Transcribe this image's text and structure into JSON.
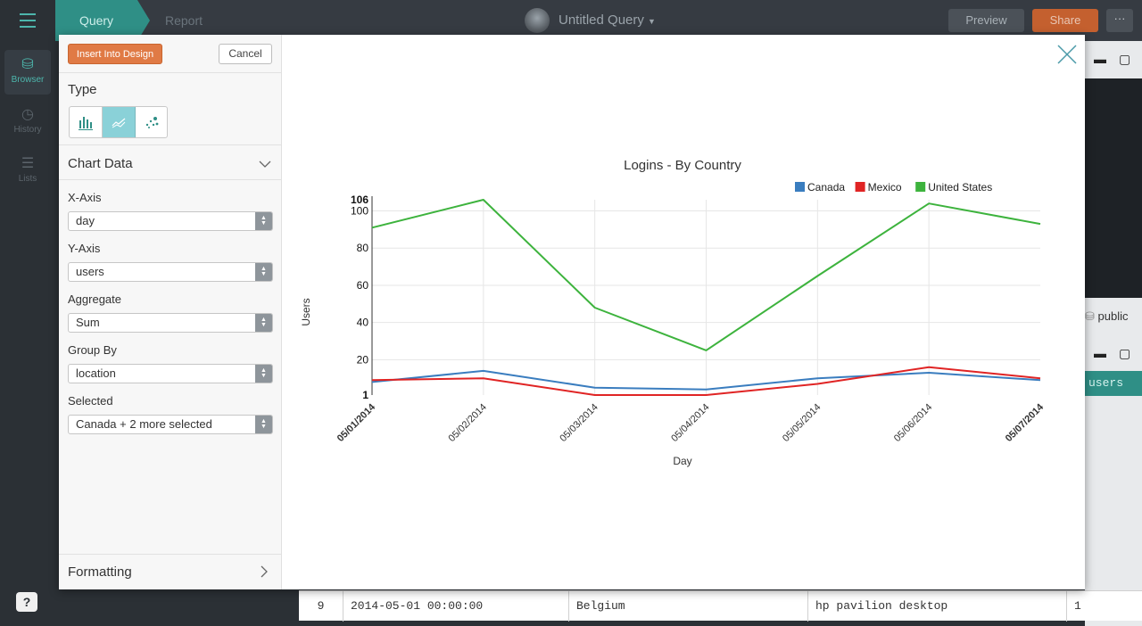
{
  "app": {
    "tabs": [
      {
        "label": "Query"
      },
      {
        "label": "Report"
      }
    ],
    "query_title": "Untitled Query",
    "preview_label": "Preview",
    "share_label": "Share",
    "more_label": "···",
    "nav": [
      {
        "label": "Browser"
      },
      {
        "label": "History"
      },
      {
        "label": "Lists"
      }
    ],
    "help_label": "?",
    "schema_label": "public",
    "column_header": "users",
    "table_row": {
      "index": "9",
      "date": "2014-05-01 00:00:00",
      "location": "Belgium",
      "device": "hp pavilion desktop",
      "users": "1"
    }
  },
  "modal": {
    "insert_label": "Insert Into Design",
    "cancel_label": "Cancel",
    "type_label": "Type",
    "chart_data_label": "Chart Data",
    "formatting_label": "Formatting",
    "fields": [
      {
        "label": "X-Axis",
        "value": "day"
      },
      {
        "label": "Y-Axis",
        "value": "users"
      },
      {
        "label": "Aggregate",
        "value": "Sum"
      },
      {
        "label": "Group By",
        "value": "location"
      },
      {
        "label": "Selected",
        "value": "Canada + 2 more selected"
      }
    ]
  },
  "colors": {
    "accent": "#2f8f86",
    "canada": "#3a7dbf",
    "mexico": "#e02424",
    "us": "#3db33d",
    "insert": "#e07a45"
  },
  "chart_data": {
    "type": "line",
    "title": "Logins - By Country",
    "xlabel": "Day",
    "ylabel": "Users",
    "categories": [
      "05/01/2014",
      "05/02/2014",
      "05/03/2014",
      "05/04/2014",
      "05/05/2014",
      "05/06/2014",
      "05/07/2014"
    ],
    "y_ticks": [
      1,
      20,
      40,
      60,
      80,
      100,
      106
    ],
    "ylim": [
      1,
      106
    ],
    "legend_position": "top-right",
    "series": [
      {
        "name": "Canada",
        "color": "#3a7dbf",
        "values": [
          8,
          14,
          5,
          4,
          10,
          13,
          9
        ]
      },
      {
        "name": "Mexico",
        "color": "#e02424",
        "values": [
          9,
          10,
          1,
          1,
          7,
          16,
          10
        ]
      },
      {
        "name": "United States",
        "color": "#3db33d",
        "values": [
          91,
          106,
          48,
          25,
          65,
          104,
          93
        ]
      }
    ]
  }
}
